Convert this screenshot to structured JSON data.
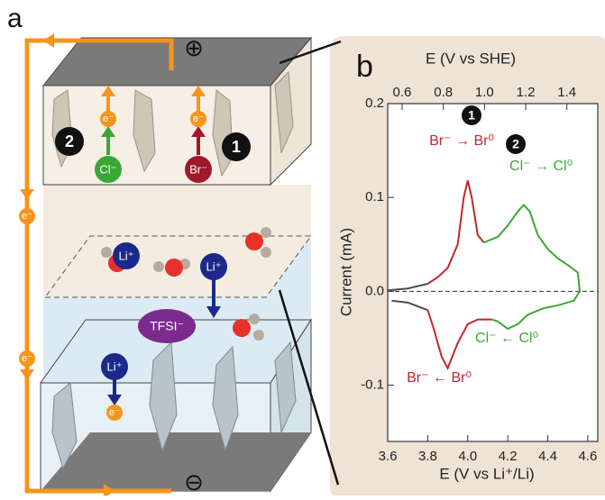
{
  "diagram": {
    "panel_label": "a",
    "plus": "⊕",
    "minus": "⊖",
    "electron": "e⁻",
    "badges": [
      "2",
      "1"
    ],
    "ions": {
      "cl": "Cl⁻",
      "br": "Br⁻",
      "li": "Li⁺",
      "tfsi": "TFSI⁻"
    }
  },
  "chart_data": {
    "type": "line",
    "panel_label": "b",
    "x_label": "E (V vs Li⁺/Li)",
    "x2_label": "E (V vs SHE)",
    "y_label": "Current (mA)",
    "xlim": [
      3.6,
      4.65
    ],
    "xticks": [
      3.6,
      3.8,
      {
        "value": 4,
        "label": "4.0"
      },
      4.2,
      4.4,
      4.6
    ],
    "x2lim": [
      0.53,
      1.55
    ],
    "x2ticks": [
      0.6,
      0.8,
      {
        "value": 1,
        "label": "1.0"
      },
      1.2,
      1.4
    ],
    "ylim": [
      -0.16,
      0.2
    ],
    "yticks": [
      0.2,
      0.1,
      {
        "value": 0,
        "label": "0.0"
      },
      -0.1
    ],
    "series": [
      {
        "color": "#4d4d4d",
        "x": [
          3.6,
          3.7,
          3.8
        ],
        "values": [
          0.001,
          0.003,
          0.008
        ]
      },
      {
        "color": "#c1272d",
        "x": [
          3.8,
          3.85,
          3.9,
          3.95,
          3.98,
          4.0,
          4.02,
          4.05,
          4.08
        ],
        "values": [
          0.008,
          0.015,
          0.025,
          0.05,
          0.1,
          0.118,
          0.1,
          0.06,
          0.052
        ]
      },
      {
        "color": "#39a935",
        "x": [
          4.08,
          4.15,
          4.2,
          4.25,
          4.28,
          4.31,
          4.35,
          4.4,
          4.45,
          4.5,
          4.55,
          4.56,
          4.53,
          4.45,
          4.38,
          4.3,
          4.25,
          4.2,
          4.15,
          4.12
        ],
        "values": [
          0.052,
          0.058,
          0.07,
          0.085,
          0.092,
          0.085,
          0.06,
          0.045,
          0.035,
          0.028,
          0.02,
          0.0,
          -0.01,
          -0.015,
          -0.018,
          -0.025,
          -0.035,
          -0.04,
          -0.032,
          -0.03
        ]
      },
      {
        "color": "#c1272d",
        "x": [
          4.12,
          4.05,
          4.0,
          3.95,
          3.9,
          3.87,
          3.83,
          3.8
        ],
        "values": [
          -0.03,
          -0.03,
          -0.035,
          -0.055,
          -0.082,
          -0.07,
          -0.04,
          -0.02
        ]
      },
      {
        "color": "#4d4d4d",
        "x": [
          3.8,
          3.7,
          3.62
        ],
        "values": [
          -0.02,
          -0.012,
          -0.01
        ]
      }
    ],
    "badges": [
      "1",
      "2"
    ],
    "annotations": [
      {
        "text": "Br⁻ → Br⁰",
        "color": "#c1272d"
      },
      {
        "text": "Cl⁻ → Cl⁰",
        "color": "#39a935"
      },
      {
        "text": "Cl⁻ ← Cl⁰",
        "color": "#39a935"
      },
      {
        "text": "Br⁻ ← Br⁰",
        "color": "#c1272d"
      }
    ]
  }
}
